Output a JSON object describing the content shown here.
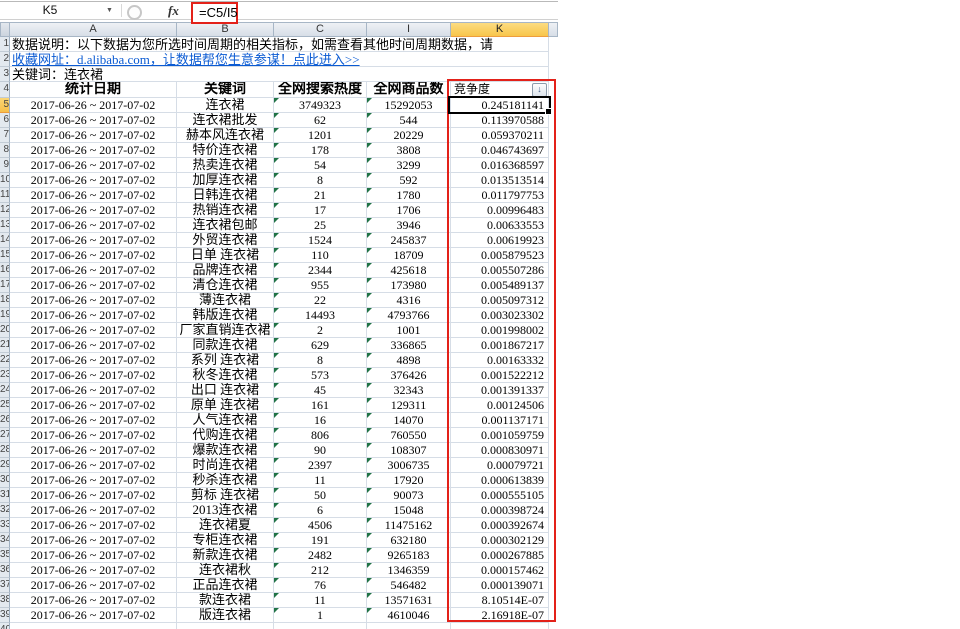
{
  "window": {
    "name_box": "K5",
    "formula": "=C5/I5",
    "fx_label": "fx"
  },
  "icons": {
    "name_box_dropdown": "▼",
    "filter_sort": "↓"
  },
  "columns": [
    "A",
    "B",
    "C",
    "I",
    "K"
  ],
  "selected_column": "K",
  "selected_cell": "K5",
  "info": {
    "note": "数据说明：以下数据为您所选时间周期的相关指标，如需查看其他时间周期数据，请",
    "link": "收藏网址：d.alibaba.com，让数据帮您生意参谋！点此进入>>",
    "keyword_line": "关键词：连衣裙"
  },
  "table": {
    "headers": {
      "date": "统计日期",
      "keyword": "关键词",
      "search": "全网搜索热度",
      "products": "全网商品数",
      "competition": "竞争度"
    },
    "date_range": "2017-06-26 ~ 2017-07-02",
    "rows": [
      {
        "keyword": "连衣裙",
        "search": "3749323",
        "products": "15292053",
        "competition": "0.245181141"
      },
      {
        "keyword": "连衣裙批发",
        "search": "62",
        "products": "544",
        "competition": "0.113970588"
      },
      {
        "keyword": "赫本风连衣裙",
        "search": "1201",
        "products": "20229",
        "competition": "0.059370211"
      },
      {
        "keyword": "特价连衣裙",
        "search": "178",
        "products": "3808",
        "competition": "0.046743697"
      },
      {
        "keyword": "热卖连衣裙",
        "search": "54",
        "products": "3299",
        "competition": "0.016368597"
      },
      {
        "keyword": "加厚连衣裙",
        "search": "8",
        "products": "592",
        "competition": "0.013513514"
      },
      {
        "keyword": "日韩连衣裙",
        "search": "21",
        "products": "1780",
        "competition": "0.011797753"
      },
      {
        "keyword": "热销连衣裙",
        "search": "17",
        "products": "1706",
        "competition": "0.00996483"
      },
      {
        "keyword": "连衣裙包邮",
        "search": "25",
        "products": "3946",
        "competition": "0.00633553"
      },
      {
        "keyword": "外贸连衣裙",
        "search": "1524",
        "products": "245837",
        "competition": "0.00619923"
      },
      {
        "keyword": "日单 连衣裙",
        "search": "110",
        "products": "18709",
        "competition": "0.005879523"
      },
      {
        "keyword": "品牌连衣裙",
        "search": "2344",
        "products": "425618",
        "competition": "0.005507286"
      },
      {
        "keyword": "清仓连衣裙",
        "search": "955",
        "products": "173980",
        "competition": "0.005489137"
      },
      {
        "keyword": "薄连衣裙",
        "search": "22",
        "products": "4316",
        "competition": "0.005097312"
      },
      {
        "keyword": "韩版连衣裙",
        "search": "14493",
        "products": "4793766",
        "competition": "0.003023302"
      },
      {
        "keyword": "厂家直销连衣裙",
        "search": "2",
        "products": "1001",
        "competition": "0.001998002"
      },
      {
        "keyword": "同款连衣裙",
        "search": "629",
        "products": "336865",
        "competition": "0.001867217"
      },
      {
        "keyword": "系列 连衣裙",
        "search": "8",
        "products": "4898",
        "competition": "0.00163332"
      },
      {
        "keyword": "秋冬连衣裙",
        "search": "573",
        "products": "376426",
        "competition": "0.001522212"
      },
      {
        "keyword": "出口 连衣裙",
        "search": "45",
        "products": "32343",
        "competition": "0.001391337"
      },
      {
        "keyword": "原单 连衣裙",
        "search": "161",
        "products": "129311",
        "competition": "0.00124506"
      },
      {
        "keyword": "人气连衣裙",
        "search": "16",
        "products": "14070",
        "competition": "0.001137171"
      },
      {
        "keyword": "代购连衣裙",
        "search": "806",
        "products": "760550",
        "competition": "0.001059759"
      },
      {
        "keyword": "爆款连衣裙",
        "search": "90",
        "products": "108307",
        "competition": "0.000830971"
      },
      {
        "keyword": "时尚连衣裙",
        "search": "2397",
        "products": "3006735",
        "competition": "0.00079721"
      },
      {
        "keyword": "秒杀连衣裙",
        "search": "11",
        "products": "17920",
        "competition": "0.000613839"
      },
      {
        "keyword": "剪标 连衣裙",
        "search": "50",
        "products": "90073",
        "competition": "0.000555105"
      },
      {
        "keyword": "2013连衣裙",
        "search": "6",
        "products": "15048",
        "competition": "0.000398724"
      },
      {
        "keyword": "连衣裙夏",
        "search": "4506",
        "products": "11475162",
        "competition": "0.000392674"
      },
      {
        "keyword": "专柜连衣裙",
        "search": "191",
        "products": "632180",
        "competition": "0.000302129"
      },
      {
        "keyword": "新款连衣裙",
        "search": "2482",
        "products": "9265183",
        "competition": "0.000267885"
      },
      {
        "keyword": "连衣裙秋",
        "search": "212",
        "products": "1346359",
        "competition": "0.000157462"
      },
      {
        "keyword": "正品连衣裙",
        "search": "76",
        "products": "546482",
        "competition": "0.000139071"
      },
      {
        "keyword": "款连衣裙",
        "search": "11",
        "products": "13571631",
        "competition": "8.10514E-07"
      },
      {
        "keyword": "版连衣裙",
        "search": "1",
        "products": "4610046",
        "competition": "2.16918E-07"
      }
    ]
  },
  "colors": {
    "highlight_red": "#e32119",
    "selected_header_yellow": "#f8c64b",
    "hyperlink_blue": "#0b5bd3",
    "error_indicator_green": "#217346"
  }
}
